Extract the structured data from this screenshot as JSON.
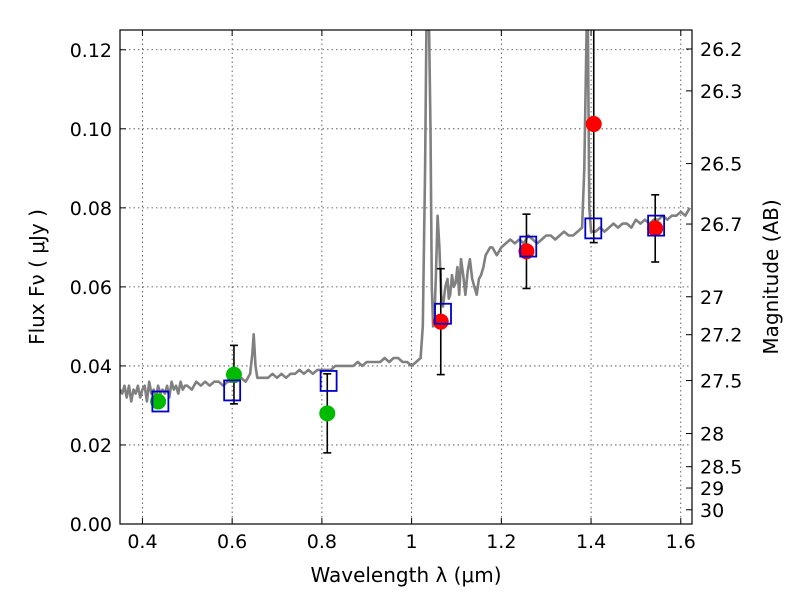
{
  "chart_data": {
    "type": "scatter",
    "xlabel": "Wavelength  λ (μm)",
    "ylabel": "Flux  Fν  ( μJy )",
    "ylabel_right": "Magnitude (AB)",
    "xlim": [
      0.35,
      1.625
    ],
    "ylim": [
      0.0,
      0.125
    ],
    "grid": true,
    "x_ticks": [
      0.4,
      0.6,
      0.8,
      1.0,
      1.2,
      1.4,
      1.6
    ],
    "x_tick_labels": [
      "0.4",
      "0.6",
      "0.8",
      "1",
      "1.2",
      "1.4",
      "1.6"
    ],
    "y_ticks": [
      0.0,
      0.02,
      0.04,
      0.06,
      0.08,
      0.1,
      0.12
    ],
    "y_tick_labels": [
      "0.00",
      "0.02",
      "0.04",
      "0.06",
      "0.08",
      "0.10",
      "0.12"
    ],
    "mag_ticks": [
      {
        "label": "26.2",
        "flux": 0.1202
      },
      {
        "label": "26.3",
        "flux": 0.1096
      },
      {
        "label": "26.5",
        "flux": 0.0912
      },
      {
        "label": "26.7",
        "flux": 0.0759
      },
      {
        "label": "27",
        "flux": 0.0575
      },
      {
        "label": "27.2",
        "flux": 0.0479
      },
      {
        "label": "27.5",
        "flux": 0.0363
      },
      {
        "label": "28",
        "flux": 0.0229
      },
      {
        "label": "28.5",
        "flux": 0.0145
      },
      {
        "label": "29",
        "flux": 0.0091
      },
      {
        "label": "30",
        "flux": 0.0036
      }
    ],
    "series": [
      {
        "kind": "spectrum",
        "color": "#808080",
        "x": [
          0.35,
          0.355,
          0.36,
          0.365,
          0.37,
          0.375,
          0.38,
          0.385,
          0.39,
          0.395,
          0.4,
          0.405,
          0.41,
          0.415,
          0.42,
          0.425,
          0.43,
          0.435,
          0.44,
          0.445,
          0.45,
          0.455,
          0.46,
          0.465,
          0.47,
          0.475,
          0.48,
          0.485,
          0.49,
          0.495,
          0.5,
          0.51,
          0.52,
          0.53,
          0.54,
          0.55,
          0.56,
          0.57,
          0.58,
          0.59,
          0.6,
          0.61,
          0.62,
          0.63,
          0.635,
          0.64,
          0.645,
          0.648,
          0.652,
          0.656,
          0.66,
          0.67,
          0.68,
          0.69,
          0.7,
          0.71,
          0.72,
          0.73,
          0.74,
          0.75,
          0.76,
          0.77,
          0.78,
          0.79,
          0.8,
          0.81,
          0.82,
          0.83,
          0.84,
          0.85,
          0.86,
          0.87,
          0.88,
          0.89,
          0.9,
          0.91,
          0.92,
          0.93,
          0.94,
          0.95,
          0.96,
          0.97,
          0.98,
          0.99,
          1.0,
          1.01,
          1.02,
          1.025,
          1.03,
          1.033,
          1.036,
          1.039,
          1.042,
          1.045,
          1.048,
          1.051,
          1.054,
          1.058,
          1.062,
          1.066,
          1.07,
          1.075,
          1.08,
          1.083,
          1.086,
          1.09,
          1.094,
          1.098,
          1.102,
          1.106,
          1.11,
          1.115,
          1.12,
          1.125,
          1.13,
          1.135,
          1.14,
          1.145,
          1.15,
          1.155,
          1.16,
          1.165,
          1.17,
          1.175,
          1.18,
          1.19,
          1.2,
          1.21,
          1.22,
          1.23,
          1.24,
          1.25,
          1.26,
          1.27,
          1.28,
          1.29,
          1.3,
          1.31,
          1.32,
          1.33,
          1.34,
          1.35,
          1.36,
          1.37,
          1.38,
          1.385,
          1.39,
          1.393,
          1.396,
          1.4,
          1.41,
          1.42,
          1.43,
          1.44,
          1.45,
          1.46,
          1.47,
          1.48,
          1.49,
          1.5,
          1.51,
          1.52,
          1.53,
          1.54,
          1.55,
          1.56,
          1.57,
          1.58,
          1.59,
          1.6,
          1.61,
          1.62
        ],
        "y": [
          0.034,
          0.033,
          0.035,
          0.032,
          0.035,
          0.031,
          0.034,
          0.033,
          0.035,
          0.032,
          0.034,
          0.035,
          0.031,
          0.036,
          0.033,
          0.034,
          0.032,
          0.035,
          0.033,
          0.034,
          0.033,
          0.035,
          0.032,
          0.036,
          0.034,
          0.035,
          0.033,
          0.036,
          0.034,
          0.035,
          0.035,
          0.034,
          0.036,
          0.035,
          0.036,
          0.035,
          0.036,
          0.036,
          0.035,
          0.036,
          0.036,
          0.036,
          0.037,
          0.036,
          0.037,
          0.038,
          0.043,
          0.048,
          0.04,
          0.037,
          0.037,
          0.037,
          0.037,
          0.038,
          0.037,
          0.038,
          0.037,
          0.038,
          0.038,
          0.039,
          0.038,
          0.039,
          0.038,
          0.039,
          0.039,
          0.039,
          0.039,
          0.04,
          0.04,
          0.04,
          0.04,
          0.04,
          0.041,
          0.04,
          0.041,
          0.041,
          0.041,
          0.041,
          0.042,
          0.041,
          0.042,
          0.042,
          0.041,
          0.041,
          0.04,
          0.041,
          0.042,
          0.05,
          0.09,
          0.125,
          0.125,
          0.125,
          0.1,
          0.06,
          0.05,
          0.053,
          0.062,
          0.078,
          0.07,
          0.058,
          0.055,
          0.06,
          0.062,
          0.057,
          0.058,
          0.063,
          0.06,
          0.061,
          0.065,
          0.058,
          0.067,
          0.063,
          0.058,
          0.064,
          0.067,
          0.062,
          0.06,
          0.058,
          0.062,
          0.063,
          0.065,
          0.068,
          0.069,
          0.07,
          0.07,
          0.068,
          0.07,
          0.071,
          0.072,
          0.071,
          0.072,
          0.071,
          0.073,
          0.072,
          0.071,
          0.072,
          0.073,
          0.073,
          0.072,
          0.073,
          0.074,
          0.073,
          0.073,
          0.074,
          0.075,
          0.09,
          0.125,
          0.125,
          0.08,
          0.074,
          0.074,
          0.075,
          0.074,
          0.075,
          0.076,
          0.075,
          0.076,
          0.076,
          0.075,
          0.077,
          0.076,
          0.077,
          0.076,
          0.077,
          0.077,
          0.078,
          0.077,
          0.078,
          0.078,
          0.079,
          0.078,
          0.08
        ]
      },
      {
        "kind": "points",
        "marker": "circle",
        "color": "#00bb00",
        "x": [
          0.435,
          0.604,
          0.812
        ],
        "y": [
          0.031,
          0.0378,
          0.028
        ],
        "yerr": [
          null,
          0.0074,
          0.01
        ]
      },
      {
        "kind": "points",
        "marker": "circle",
        "color": "#ff0000",
        "x": [
          1.065,
          1.256,
          1.406,
          1.543
        ],
        "y": [
          0.0512,
          0.069,
          0.1012,
          0.0748
        ],
        "yerr": [
          0.0134,
          0.0094,
          0.03,
          0.0085
        ]
      },
      {
        "kind": "points",
        "marker": "square",
        "color": "#0000cc",
        "x": [
          0.44,
          0.6,
          0.815,
          1.07,
          1.26,
          1.405,
          1.545
        ],
        "y": [
          0.031,
          0.0338,
          0.0362,
          0.0532,
          0.0702,
          0.0748,
          0.0755
        ]
      }
    ]
  }
}
